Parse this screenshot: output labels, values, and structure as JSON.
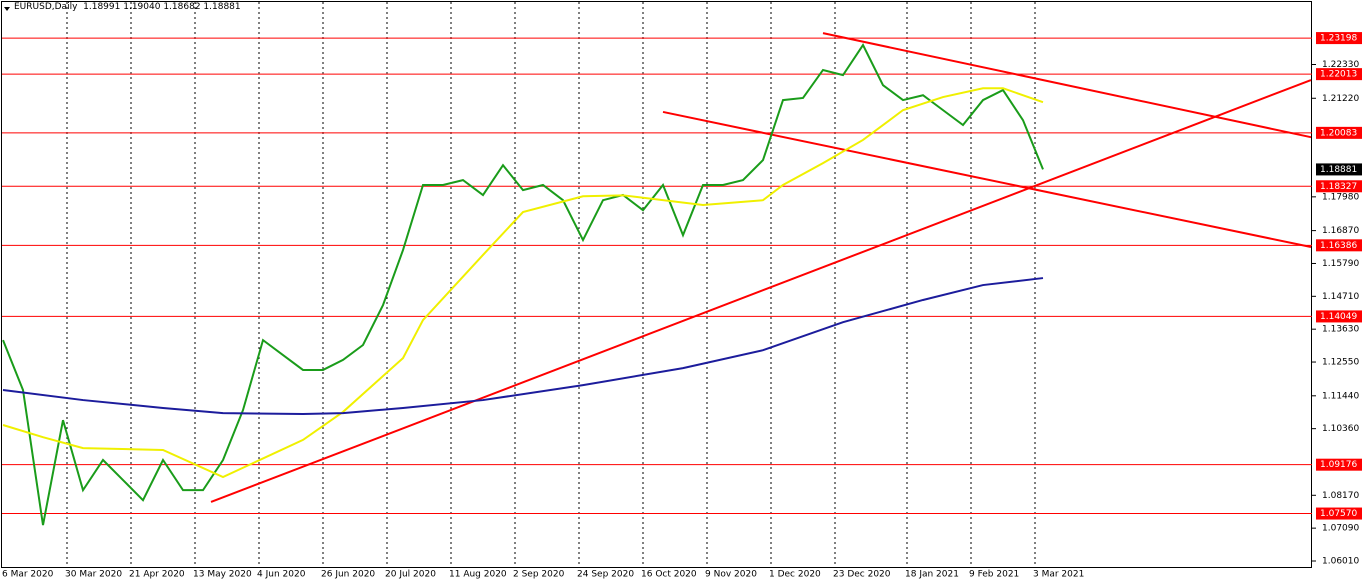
{
  "header": {
    "symbol": "EURUSD,Daily",
    "ohlc": [
      "1.18991",
      "1.19040",
      "1.18682",
      "1.18881"
    ]
  },
  "chart_data": {
    "type": "line",
    "ylim": [
      1.0578,
      1.2445
    ],
    "yticks": [
      {
        "value": 1.2233,
        "label": "1.22330"
      },
      {
        "value": 1.2122,
        "label": "1.21220"
      },
      {
        "value": 1.1798,
        "label": "1.17980"
      },
      {
        "value": 1.1687,
        "label": "1.16870"
      },
      {
        "value": 1.1579,
        "label": "1.15790"
      },
      {
        "value": 1.1471,
        "label": "1.14710"
      },
      {
        "value": 1.1363,
        "label": "1.13630"
      },
      {
        "value": 1.1255,
        "label": "1.12550"
      },
      {
        "value": 1.1144,
        "label": "1.11440"
      },
      {
        "value": 1.1036,
        "label": "1.10360"
      },
      {
        "value": 1.0817,
        "label": "1.08170"
      },
      {
        "value": 1.0709,
        "label": "1.07090"
      },
      {
        "value": 1.0601,
        "label": "1.06010"
      }
    ],
    "xticks": [
      {
        "value": "2020-03-06",
        "label": "6 Mar 2020"
      },
      {
        "value": "2020-03-30",
        "label": "30 Mar 2020"
      },
      {
        "value": "2020-04-21",
        "label": "21 Apr 2020"
      },
      {
        "value": "2020-05-13",
        "label": "13 May 2020"
      },
      {
        "value": "2020-06-04",
        "label": "4 Jun 2020"
      },
      {
        "value": "2020-06-26",
        "label": "26 Jun 2020"
      },
      {
        "value": "2020-07-20",
        "label": "20 Jul 2020"
      },
      {
        "value": "2020-08-11",
        "label": "11 Aug 2020"
      },
      {
        "value": "2020-09-02",
        "label": "2 Sep 2020"
      },
      {
        "value": "2020-09-24",
        "label": "24 Sep 2020"
      },
      {
        "value": "2020-10-16",
        "label": "16 Oct 2020"
      },
      {
        "value": "2020-11-09",
        "label": "9 Nov 2020"
      },
      {
        "value": "2020-12-01",
        "label": "1 Dec 2020"
      },
      {
        "value": "2020-12-23",
        "label": "23 Dec 2020"
      },
      {
        "value": "2021-01-18",
        "label": "18 Jan 2021"
      },
      {
        "value": "2021-02-09",
        "label": "9 Feb 2021"
      },
      {
        "value": "2021-03-03",
        "label": "3 Mar 2021"
      }
    ],
    "series": [
      {
        "color": "#1a9c1a",
        "x": [
          "2020-03-06",
          "2020-03-13",
          "2020-03-20",
          "2020-03-27",
          "2020-04-03",
          "2020-04-10",
          "2020-04-17",
          "2020-04-24",
          "2020-05-01",
          "2020-05-08",
          "2020-05-15",
          "2020-05-22",
          "2020-05-29",
          "2020-06-05",
          "2020-06-12",
          "2020-06-19",
          "2020-06-26",
          "2020-07-03",
          "2020-07-10",
          "2020-07-17",
          "2020-07-24",
          "2020-07-31",
          "2020-08-07",
          "2020-08-14",
          "2020-08-21",
          "2020-08-28",
          "2020-09-04",
          "2020-09-11",
          "2020-09-18",
          "2020-09-25",
          "2020-10-02",
          "2020-10-09",
          "2020-10-16",
          "2020-10-23",
          "2020-10-30",
          "2020-11-06",
          "2020-11-13",
          "2020-11-20",
          "2020-11-27",
          "2020-12-04",
          "2020-12-11",
          "2020-12-18",
          "2020-12-25",
          "2021-01-01",
          "2021-01-08",
          "2021-01-15",
          "2021-01-22",
          "2021-01-29",
          "2021-02-05",
          "2021-02-12",
          "2021-02-19",
          "2021-02-26",
          "2021-03-05"
        ],
        "values": [
          1.1327,
          1.1163,
          1.0719,
          1.1064,
          1.0834,
          1.0933,
          1.0867,
          1.0801,
          1.0933,
          1.0834,
          1.0834,
          1.0933,
          1.1097,
          1.1327,
          1.1278,
          1.1229,
          1.1229,
          1.1262,
          1.1311,
          1.1442,
          1.1623,
          1.1837,
          1.1837,
          1.1853,
          1.1804,
          1.1902,
          1.182,
          1.1837,
          1.1787,
          1.1656,
          1.1787,
          1.1804,
          1.1754,
          1.1837,
          1.1672,
          1.1837,
          1.1837,
          1.1853,
          1.1919,
          1.2116,
          1.2123,
          1.2215,
          1.2198,
          1.2297,
          1.2165,
          1.2116,
          1.2132,
          1.2083,
          1.2034,
          1.2116,
          1.2149,
          1.205,
          1.18881
        ]
      },
      {
        "color": "#f0f000",
        "x": [
          "2020-03-06",
          "2020-03-20",
          "2020-04-03",
          "2020-05-01",
          "2020-05-22",
          "2020-06-19",
          "2020-07-03",
          "2020-07-24",
          "2020-07-31",
          "2020-08-21",
          "2020-09-04",
          "2020-09-25",
          "2020-10-09",
          "2020-11-06",
          "2020-11-27",
          "2020-12-04",
          "2020-12-18",
          "2021-01-01",
          "2021-01-15",
          "2021-01-29",
          "2021-02-12",
          "2021-02-19",
          "2021-03-05"
        ],
        "values": [
          1.1048,
          1.1008,
          1.0972,
          1.0966,
          1.0877,
          1.0999,
          1.1091,
          1.1268,
          1.1393,
          1.1607,
          1.1748,
          1.18,
          1.1803,
          1.1771,
          1.1787,
          1.1837,
          1.1909,
          1.1985,
          1.2083,
          1.2126,
          1.2155,
          1.2155,
          1.2109
        ]
      },
      {
        "color": "#1c1c9c",
        "x": [
          "2020-03-06",
          "2020-04-03",
          "2020-05-01",
          "2020-05-22",
          "2020-06-19",
          "2020-07-03",
          "2020-07-24",
          "2020-08-21",
          "2020-09-25",
          "2020-10-30",
          "2020-11-27",
          "2020-12-25",
          "2021-01-22",
          "2021-02-12",
          "2021-03-05"
        ],
        "values": [
          1.1163,
          1.113,
          1.1104,
          1.1087,
          1.1084,
          1.1087,
          1.1104,
          1.113,
          1.1179,
          1.1235,
          1.1294,
          1.1386,
          1.1459,
          1.1508,
          1.1531
        ]
      }
    ],
    "trendlines": [
      {
        "color": "#ff0000",
        "x": [
          "2020-05-19",
          "2021-06-08"
        ],
        "values": [
          1.0795,
          1.2182
        ]
      },
      {
        "color": "#ff0000",
        "x": [
          "2020-12-18",
          "2021-06-08"
        ],
        "values": [
          1.2336,
          1.1994
        ]
      },
      {
        "color": "#ff0000",
        "x": [
          "2020-10-23",
          "2021-06-08"
        ],
        "values": [
          1.2077,
          1.1633
        ]
      }
    ],
    "levels": [
      1.23198,
      1.22013,
      1.20083,
      1.18327,
      1.16386,
      1.14049,
      1.09176,
      {
        "value": 1.0757,
        "label": "1.07570"
      }
    ],
    "level_color": "#ff0000",
    "last_price": 1.18881
  }
}
